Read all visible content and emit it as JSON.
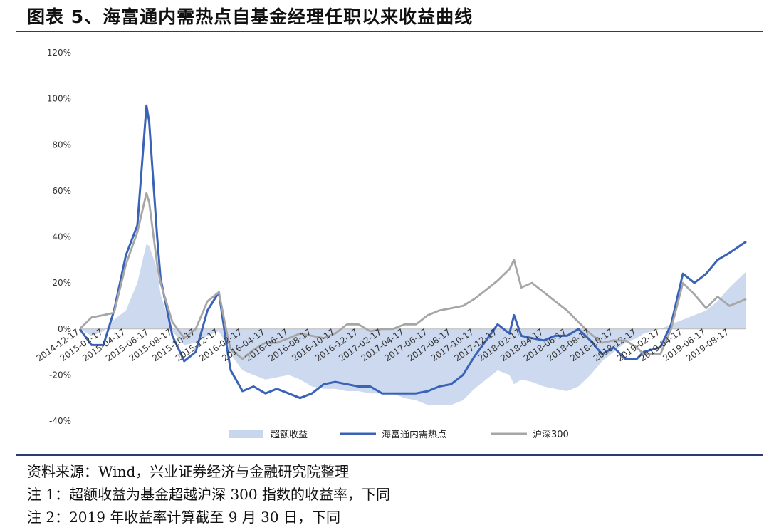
{
  "header": {
    "title": "图表 5、海富通内需热点自基金经理任职以来收益曲线"
  },
  "notes": {
    "source": "资料来源：Wind，兴业证券经济与金融研究院整理",
    "note1": "注 1：超额收益为基金超越沪深 300 指数的收益率，下同",
    "note2": "注 2：2019 年收益率计算截至 9 月 30 日，下同"
  },
  "chart_data": {
    "type": "line",
    "ylim": [
      -40,
      120
    ],
    "y_ticks": [
      "120%",
      "100%",
      "80%",
      "60%",
      "40%",
      "20%",
      "0%",
      "-20%",
      "-40%"
    ],
    "y_tick_values": [
      120,
      100,
      80,
      60,
      40,
      20,
      0,
      -20,
      -40
    ],
    "x_tick_labels": [
      "2014-12-17",
      "2015-02-17",
      "2015-04-17",
      "2015-06-17",
      "2015-08-17",
      "2015-10-17",
      "2015-12-17",
      "2016-02-17",
      "2016-04-17",
      "2016-06-17",
      "2016-08-17",
      "2016-10-17",
      "2016-12-17",
      "2017-02-17",
      "2017-04-17",
      "2017-06-17",
      "2017-08-17",
      "2017-10-17",
      "2017-12-17",
      "2018-02-17",
      "2018-04-17",
      "2018-06-17",
      "2018-08-17",
      "2018-10-17",
      "2018-12-17",
      "2019-02-17",
      "2019-04-17",
      "2019-06-17",
      "2019-08-17"
    ],
    "x": [
      "2014-12-17",
      "2015-01-17",
      "2015-02-17",
      "2015-03-17",
      "2015-04-17",
      "2015-05-17",
      "2015-06-10",
      "2015-06-17",
      "2015-07-08",
      "2015-07-17",
      "2015-08-17",
      "2015-09-17",
      "2015-10-17",
      "2015-11-17",
      "2015-12-17",
      "2016-01-07",
      "2016-01-17",
      "2016-02-17",
      "2016-03-17",
      "2016-04-17",
      "2016-05-17",
      "2016-06-17",
      "2016-07-17",
      "2016-08-17",
      "2016-09-17",
      "2016-10-17",
      "2016-11-17",
      "2016-12-17",
      "2017-01-17",
      "2017-02-17",
      "2017-03-17",
      "2017-04-17",
      "2017-05-17",
      "2017-06-17",
      "2017-07-17",
      "2017-08-17",
      "2017-09-17",
      "2017-10-17",
      "2017-11-17",
      "2017-12-17",
      "2018-01-17",
      "2018-01-29",
      "2018-02-17",
      "2018-03-17",
      "2018-04-17",
      "2018-05-17",
      "2018-06-17",
      "2018-07-17",
      "2018-08-17",
      "2018-09-17",
      "2018-10-17",
      "2018-11-17",
      "2018-12-17",
      "2019-01-04",
      "2019-02-17",
      "2019-03-17",
      "2019-04-17",
      "2019-05-17",
      "2019-06-17",
      "2019-07-17",
      "2019-08-17",
      "2019-09-30"
    ],
    "series": [
      {
        "name": "超额收益",
        "kind": "area",
        "color": "#c9d7ee",
        "values": [
          0,
          -3,
          -1,
          4,
          8,
          20,
          37,
          36,
          26,
          15,
          -1,
          -7,
          -6,
          -3,
          -1,
          -7,
          -11,
          -18,
          -20,
          -22,
          -21,
          -20,
          -22,
          -25,
          -26,
          -26,
          -27,
          -27,
          -28,
          -28,
          -28,
          -30,
          -31,
          -33,
          -33,
          -33,
          -31,
          -26,
          -22,
          -18,
          -20,
          -24,
          -22,
          -23,
          -25,
          -26,
          -27,
          -25,
          -20,
          -14,
          -10,
          -6,
          -4,
          -2,
          0,
          2,
          4,
          6,
          8,
          12,
          18,
          25
        ]
      },
      {
        "name": "海富通内需热点",
        "kind": "line",
        "color": "#3a63b8",
        "values": [
          0,
          -7,
          -7,
          8,
          32,
          45,
          97,
          90,
          40,
          22,
          -3,
          -14,
          -10,
          8,
          16,
          -8,
          -18,
          -27,
          -25,
          -28,
          -26,
          -28,
          -30,
          -28,
          -24,
          -23,
          -24,
          -25,
          -25,
          -28,
          -28,
          -28,
          -28,
          -27,
          -25,
          -24,
          -20,
          -12,
          -5,
          2,
          -2,
          6,
          -3,
          -4,
          -5,
          -3,
          -3,
          0,
          -5,
          -11,
          -8,
          -13,
          -13,
          -10,
          -8,
          2,
          24,
          20,
          24,
          30,
          33,
          38
        ]
      },
      {
        "name": "沪深300",
        "kind": "line",
        "color": "#a6a6a6",
        "values": [
          0,
          5,
          6,
          7,
          28,
          42,
          59,
          55,
          28,
          20,
          3,
          -4,
          0,
          12,
          16,
          -2,
          -9,
          -13,
          -9,
          -6,
          -6,
          -4,
          -2,
          -3,
          -4,
          -2,
          2,
          2,
          -1,
          0,
          0,
          2,
          2,
          6,
          8,
          9,
          10,
          13,
          17,
          21,
          26,
          30,
          18,
          20,
          16,
          12,
          8,
          3,
          -2,
          -6,
          -5,
          -5,
          -8,
          -11,
          -11,
          0,
          20,
          15,
          9,
          14,
          10,
          13
        ]
      }
    ],
    "legend_position": "bottom",
    "grid": false
  }
}
